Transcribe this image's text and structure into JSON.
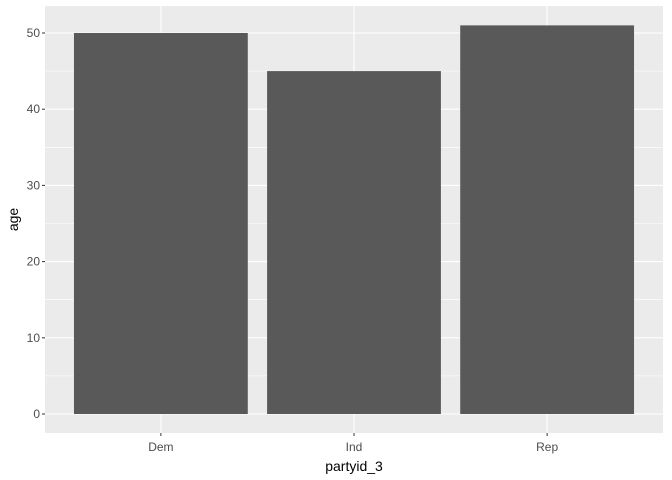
{
  "chart_data": {
    "type": "bar",
    "categories": [
      "Dem",
      "Ind",
      "Rep"
    ],
    "values": [
      50,
      45,
      51
    ],
    "xlabel": "partyid_3",
    "ylabel": "age",
    "ylim": [
      0,
      53.6
    ],
    "yticks": [
      0,
      10,
      20,
      30,
      40,
      50
    ],
    "ytick_labels": [
      "0",
      "10",
      "20",
      "30",
      "40",
      "50"
    ],
    "grid": true,
    "legend": "none"
  },
  "colors": {
    "panel_bg": "#EBEBEB",
    "grid_major": "#FFFFFF",
    "bar_fill": "#595959",
    "tick_text": "#4D4D4D",
    "title_text": "#000000"
  }
}
